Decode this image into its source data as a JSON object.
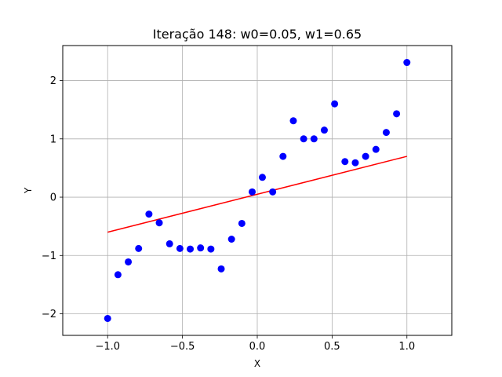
{
  "chart_data": {
    "type": "scatter",
    "title": "Iteração 148: w0=0.05, w1=0.65",
    "xlabel": "X",
    "ylabel": "Y",
    "xlim": [
      -1.3,
      1.3
    ],
    "ylim": [
      -2.37,
      2.6
    ],
    "grid": true,
    "x_ticks": [
      -1.0,
      -0.5,
      0.0,
      0.5,
      1.0
    ],
    "x_tick_labels": [
      "−1.0",
      "−0.5",
      "0.0",
      "0.5",
      "1.0"
    ],
    "y_ticks": [
      -2,
      -1,
      0,
      1,
      2
    ],
    "y_tick_labels": [
      "−2",
      "−1",
      "0",
      "1",
      "2"
    ],
    "series": [
      {
        "type": "scatter",
        "color": "#0000ff",
        "x": [
          -1.0,
          -0.931,
          -0.862,
          -0.793,
          -0.724,
          -0.655,
          -0.586,
          -0.517,
          -0.448,
          -0.379,
          -0.31,
          -0.241,
          -0.172,
          -0.103,
          -0.034,
          0.034,
          0.103,
          0.172,
          0.241,
          0.31,
          0.379,
          0.448,
          0.517,
          0.586,
          0.655,
          0.724,
          0.793,
          0.862,
          0.931,
          1.0
        ],
        "y": [
          -2.08,
          -1.33,
          -1.11,
          -0.88,
          -0.29,
          -0.44,
          -0.8,
          -0.88,
          -0.89,
          -0.87,
          -0.89,
          -1.23,
          -0.72,
          -0.45,
          0.09,
          0.34,
          0.09,
          0.7,
          1.31,
          1.0,
          1.0,
          1.15,
          1.6,
          0.61,
          0.59,
          0.7,
          0.82,
          1.11,
          1.43,
          2.31
        ]
      },
      {
        "type": "line",
        "color": "#ff0000",
        "x": [
          -1.0,
          1.0
        ],
        "y": [
          -0.6,
          0.7
        ]
      }
    ]
  }
}
